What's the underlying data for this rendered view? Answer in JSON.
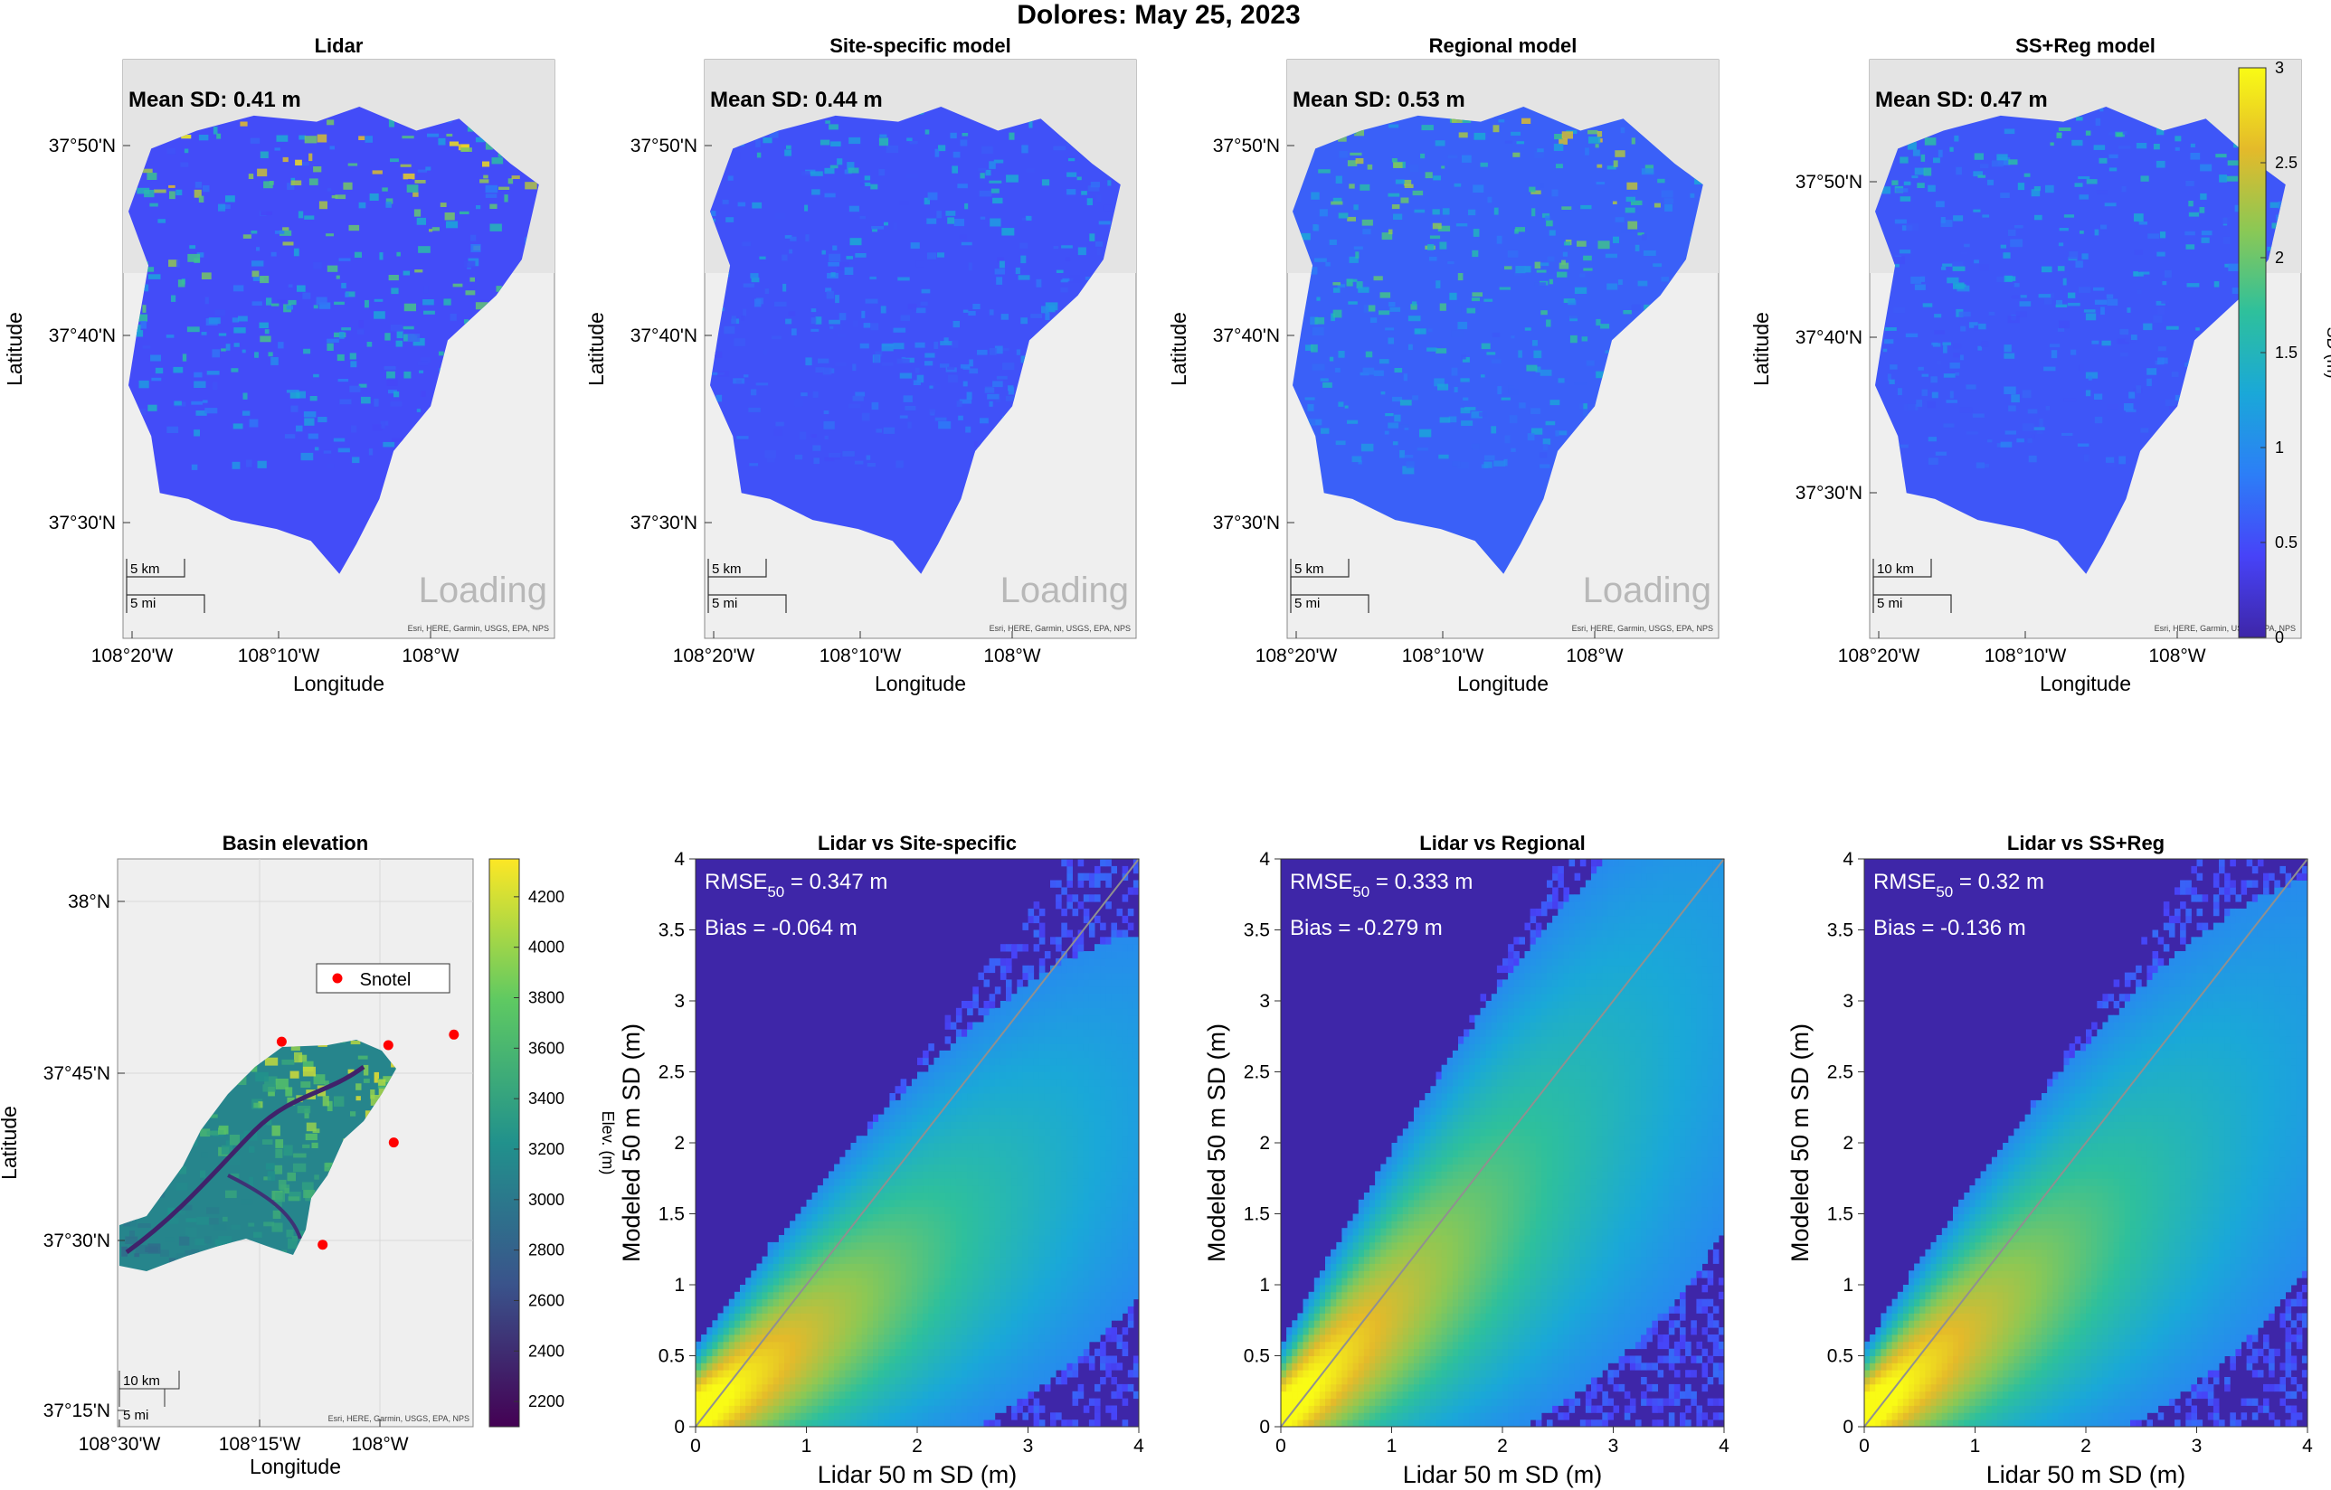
{
  "figure": {
    "title": "Dolores: May 25, 2023"
  },
  "colors": {
    "parula": [
      "#3e26a8",
      "#4743f8",
      "#2c7ef7",
      "#1aa8d8",
      "#2ec09c",
      "#8bc855",
      "#e4ba2a",
      "#f9fb15"
    ],
    "elevation": [
      "#440154",
      "#3a538b",
      "#21918c",
      "#5ec962",
      "#fde725"
    ],
    "hist_bg": "#3e26a8",
    "basemap": "#efefef",
    "snotel": "#ff0000",
    "one_to_one": "#909090"
  },
  "maps": [
    {
      "title": "Lidar",
      "mean_label": "Mean SD: 0.41 m",
      "mean_sd": 0.41,
      "variability": 1.0,
      "scale_km": "5 km",
      "scale_mi": "5 mi",
      "loading": "Loading",
      "attribution": "Esri, HERE, Garmin, USGS, EPA, NPS",
      "lat_ticks": [
        "37°50'N",
        "37°40'N",
        "37°30'N"
      ],
      "lon_ticks": [
        "108°20'W",
        "108°10'W",
        "108°W"
      ],
      "xlabel": "Longitude",
      "ylabel": "Latitude"
    },
    {
      "title": "Site-specific model",
      "mean_label": "Mean SD: 0.44 m",
      "mean_sd": 0.44,
      "variability": 0.45,
      "scale_km": "5 km",
      "scale_mi": "5 mi",
      "loading": "Loading",
      "attribution": "Esri, HERE, Garmin, USGS, EPA, NPS",
      "lat_ticks": [
        "37°50'N",
        "37°40'N",
        "37°30'N"
      ],
      "lon_ticks": [
        "108°20'W",
        "108°10'W",
        "108°W"
      ],
      "xlabel": "Longitude",
      "ylabel": "Latitude"
    },
    {
      "title": "Regional model",
      "mean_label": "Mean SD: 0.53 m",
      "mean_sd": 0.53,
      "variability": 0.8,
      "scale_km": "5 km",
      "scale_mi": "5 mi",
      "loading": "Loading",
      "attribution": "Esri, HERE, Garmin, USGS, EPA, NPS",
      "lat_ticks": [
        "37°50'N",
        "37°40'N",
        "37°30'N"
      ],
      "lon_ticks": [
        "108°20'W",
        "108°10'W",
        "108°W"
      ],
      "xlabel": "Longitude",
      "ylabel": "Latitude"
    },
    {
      "title": "SS+Reg model",
      "mean_label": "Mean SD: 0.47 m",
      "mean_sd": 0.47,
      "variability": 0.5,
      "scale_km": "10 km",
      "scale_mi": "5 mi",
      "loading": "",
      "attribution": "Esri, HERE, Garmin, USGS, EPA, NPS",
      "lat_ticks": [
        "37°50'N",
        "37°40'N",
        "37°30'N"
      ],
      "lon_ticks": [
        "108°20'W",
        "108°10'W",
        "108°W"
      ],
      "xlabel": "Longitude",
      "ylabel": "Latitude"
    }
  ],
  "sd_colorbar": {
    "label": "SD (m)",
    "ticks": [
      "0",
      "0.5",
      "1",
      "1.5",
      "2",
      "2.5",
      "3"
    ],
    "range": [
      0,
      3
    ]
  },
  "elevation_map": {
    "title": "Basin elevation",
    "legend": "Snotel",
    "scale_km": "10 km",
    "scale_mi": "5 mi",
    "attribution": "Esri, HERE, Garmin, USGS, EPA, NPS",
    "lat_ticks": [
      "38°N",
      "37°45'N",
      "37°30'N",
      "37°15'N"
    ],
    "lon_ticks": [
      "108°30'W",
      "108°15'W",
      "108°W"
    ],
    "xlabel": "Longitude",
    "ylabel": "Latitude",
    "colorbar_label": "Elev. (m)",
    "colorbar_ticks": [
      "2200",
      "2400",
      "2600",
      "2800",
      "3000",
      "3200",
      "3400",
      "3600",
      "3800",
      "4000",
      "4200"
    ],
    "colorbar_range": [
      2100,
      4350
    ],
    "snotel_sites": [
      {
        "lon": -108.2,
        "lat": 37.791
      },
      {
        "lon": -108.005,
        "lat": 37.786
      },
      {
        "lon": -107.885,
        "lat": 37.801
      },
      {
        "lon": -107.995,
        "lat": 37.648
      },
      {
        "lon": -108.125,
        "lat": 37.503
      }
    ]
  },
  "chart_data": [
    {
      "type": "heatmap",
      "title": "Lidar vs Site-specific",
      "rmse_label": "RMSE",
      "rmse_sub": "50",
      "rmse_value": " = 0.347 m",
      "bias_label": "Bias = -0.064 m",
      "xlabel": "Lidar 50 m SD (m)",
      "ylabel": "Modeled 50 m SD (m)",
      "xlim": [
        0,
        4
      ],
      "ylim": [
        0,
        4
      ],
      "xticks": [
        "0",
        "1",
        "2",
        "3",
        "4"
      ],
      "yticks": [
        "0",
        "0.5",
        "1",
        "1.5",
        "2",
        "2.5",
        "3",
        "3.5",
        "4"
      ],
      "one_to_one": true,
      "slope": 0.53,
      "spread": 0.5
    },
    {
      "type": "heatmap",
      "title": "Lidar vs Regional",
      "rmse_label": "RMSE",
      "rmse_sub": "50",
      "rmse_value": " = 0.333 m",
      "bias_label": "Bias = -0.279 m",
      "xlabel": "Lidar 50 m SD (m)",
      "ylabel": "Modeled 50 m SD (m)",
      "xlim": [
        0,
        4
      ],
      "ylim": [
        0,
        4
      ],
      "xticks": [
        "0",
        "1",
        "2",
        "3",
        "4"
      ],
      "yticks": [
        "0",
        "0.5",
        "1",
        "1.5",
        "2",
        "2.5",
        "3",
        "3.5",
        "4"
      ],
      "one_to_one": true,
      "slope": 0.72,
      "spread": 0.65
    },
    {
      "type": "heatmap",
      "title": "Lidar vs SS+Reg",
      "rmse_label": "RMSE",
      "rmse_sub": "50",
      "rmse_value": " = 0.32 m",
      "bias_label": "Bias = -0.136 m",
      "xlabel": "Lidar 50 m SD (m)",
      "ylabel": "Modeled 50 m SD (m)",
      "xlim": [
        0,
        4
      ],
      "ylim": [
        0,
        4
      ],
      "xticks": [
        "0",
        "1",
        "2",
        "3",
        "4"
      ],
      "yticks": [
        "0",
        "0.5",
        "1",
        "1.5",
        "2",
        "2.5",
        "3",
        "3.5",
        "4"
      ],
      "one_to_one": true,
      "slope": 0.6,
      "spread": 0.55
    }
  ]
}
